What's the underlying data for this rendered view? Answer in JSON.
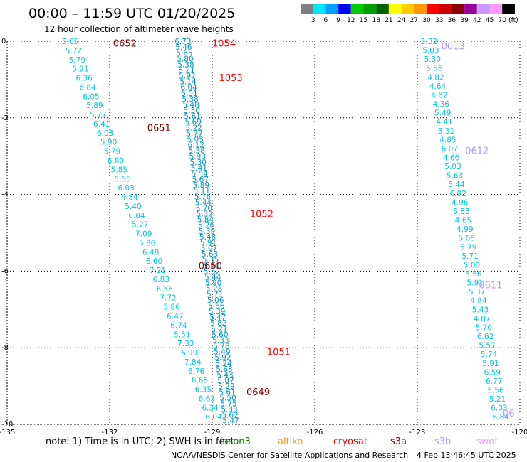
{
  "header": {
    "title": "00:00 – 11:59 UTC 01/20/2025",
    "subtitle": "12 hour collection of altimeter wave heights"
  },
  "colorbar": {
    "labels": [
      "3",
      "6",
      "9",
      "12",
      "15",
      "18",
      "21",
      "24",
      "27",
      "30",
      "33",
      "36",
      "39",
      "42",
      "45",
      "70",
      "(ft)"
    ],
    "colors": [
      "#7f7f7f",
      "#00e5ff",
      "#00a0ff",
      "#0000ff",
      "#00cc00",
      "#00a000",
      "#006600",
      "#ffff00",
      "#ffcc00",
      "#ff9900",
      "#ff0000",
      "#cc0000",
      "#880000",
      "#990099",
      "#cc99ff",
      "#ff99ff",
      "#000000"
    ]
  },
  "axes": {
    "x_ticks": [
      "-135",
      "-132",
      "-129",
      "-126",
      "-123",
      "-120"
    ],
    "y_ticks": [
      "0",
      "-2",
      "-4",
      "-6",
      "-8",
      "-10"
    ],
    "x_range": [
      -135,
      -120
    ],
    "y_range": [
      -10,
      0
    ]
  },
  "tracks": [
    {
      "name": "left-track",
      "color": "#00c8dc",
      "start": [
        -133.4,
        0
      ],
      "end": [
        -129.2,
        -9.8
      ],
      "values": [
        "5.65",
        "5.72",
        "5.79",
        "5.21",
        "6.36",
        "6.84",
        "6.05",
        "5.89",
        "5.77",
        "6.41",
        "6.03",
        "5.90",
        "5.79",
        "6.80",
        "5.85",
        "5.55",
        "6.03",
        "4.84",
        "5.40",
        "6.04",
        "5.27",
        "7.09",
        "5.86",
        "6.48",
        "6.60",
        "7.21",
        "6.83",
        "6.56",
        "7.72",
        "5.86",
        "6.47",
        "6.74",
        "5.51",
        "7.33",
        "6.99",
        "7.84",
        "6.76",
        "6.66",
        "6.35",
        "6.63",
        "6.34",
        "6.04"
      ]
    },
    {
      "name": "center-track",
      "color": "#0096c8",
      "start": [
        -130.1,
        0
      ],
      "end": [
        -128.7,
        -9.9
      ],
      "values": [
        "6.73",
        "5.46",
        "5.65",
        "5.80",
        "5.38",
        "5.21",
        "5.92",
        "5.14",
        "6.04",
        "5.01",
        "5.38",
        "5.48",
        "5.30",
        "5.61",
        "5.69",
        "5.22",
        "5.77",
        "5.05",
        "6.12",
        "5.38",
        "5.93",
        "5.30",
        "5.41",
        "5.54",
        "5.67",
        "5.89",
        "5.11",
        "5.76",
        "5.44",
        "5.70",
        "5.32",
        "5.84",
        "5.26",
        "5.59",
        "5.48",
        "5.91",
        "5.07",
        "5.63",
        "5.35",
        "5.80",
        "5.52",
        "5.44",
        "5.90",
        "5.28",
        "5.71",
        "5.06",
        "5.66",
        "5.39",
        "5.47",
        "5.82",
        "5.21",
        "5.60",
        "5.33",
        "5.78",
        "5.49",
        "5.92",
        "5.24",
        "5.68",
        "5.43",
        "5.87",
        "5.29",
        "5.61",
        "5.50",
        "5.75",
        "5.33",
        "5.62",
        "5.47"
      ]
    },
    {
      "name": "right-track",
      "color": "#00c8dc",
      "start": [
        -122.9,
        0
      ],
      "end": [
        -120.8,
        -9.8
      ],
      "values": [
        "5.32",
        "5.03",
        "5.30",
        "5.56",
        "4.82",
        "4.64",
        "4.62",
        "4.36",
        "5.49",
        "4.41",
        "5.31",
        "4.85",
        "6.07",
        "4.66",
        "5.03",
        "5.63",
        "5.44",
        "6.92",
        "4.96",
        "5.83",
        "4.65",
        "4.99",
        "5.08",
        "5.79",
        "5.71",
        "5.00",
        "5.56",
        "5.91",
        "5.37",
        "4.84",
        "5.43",
        "4.87",
        "5.70",
        "6.62",
        "5.57",
        "5.74",
        "5.91",
        "6.59",
        "6.77",
        "5.56",
        "5.21",
        "6.03",
        "6.84"
      ]
    }
  ],
  "pass_labels": [
    {
      "text": "0652",
      "lon": -131.9,
      "lat": -0.05,
      "color": "#8b0000"
    },
    {
      "text": "0651",
      "lon": -130.9,
      "lat": -2.25,
      "color": "#8b0000"
    },
    {
      "text": "0650",
      "lon": -129.4,
      "lat": -5.85,
      "color": "#8b0000"
    },
    {
      "text": "0649",
      "lon": -128.0,
      "lat": -9.15,
      "color": "#8b0000"
    },
    {
      "text": "1054",
      "lon": -129.0,
      "lat": -0.05,
      "color": "#ff0000"
    },
    {
      "text": "1053",
      "lon": -128.8,
      "lat": -0.95,
      "color": "#ff0000"
    },
    {
      "text": "1052",
      "lon": -127.9,
      "lat": -4.5,
      "color": "#ff0000"
    },
    {
      "text": "1051",
      "lon": -127.4,
      "lat": -8.1,
      "color": "#ff0000"
    },
    {
      "text": "0613",
      "lon": -122.3,
      "lat": -0.12,
      "color": "#b49bff"
    },
    {
      "text": "0612",
      "lon": -121.6,
      "lat": -2.85,
      "color": "#b49bff"
    },
    {
      "text": "0611",
      "lon": -121.2,
      "lat": -6.35,
      "color": "#b49bff"
    },
    {
      "text": "06",
      "lon": -120.5,
      "lat": -9.7,
      "color": "#b49bff"
    }
  ],
  "footer": {
    "note": "note:  1) Time is in UTC; 2) SWH is in feet",
    "satellites": [
      {
        "name": "jason3",
        "color": "#008000"
      },
      {
        "name": "altiko",
        "color": "#ff9900"
      },
      {
        "name": "cryosat",
        "color": "#ff0000"
      },
      {
        "name": "s3a",
        "color": "#8b0000"
      },
      {
        "name": "s3b",
        "color": "#b49bff"
      },
      {
        "name": "swot",
        "color": "#ff99ff"
      }
    ],
    "credit": "NOAA/NESDIS Center for Satellite Applications and Research",
    "generated": "4 Feb 13:46:45 UTC 2025"
  }
}
